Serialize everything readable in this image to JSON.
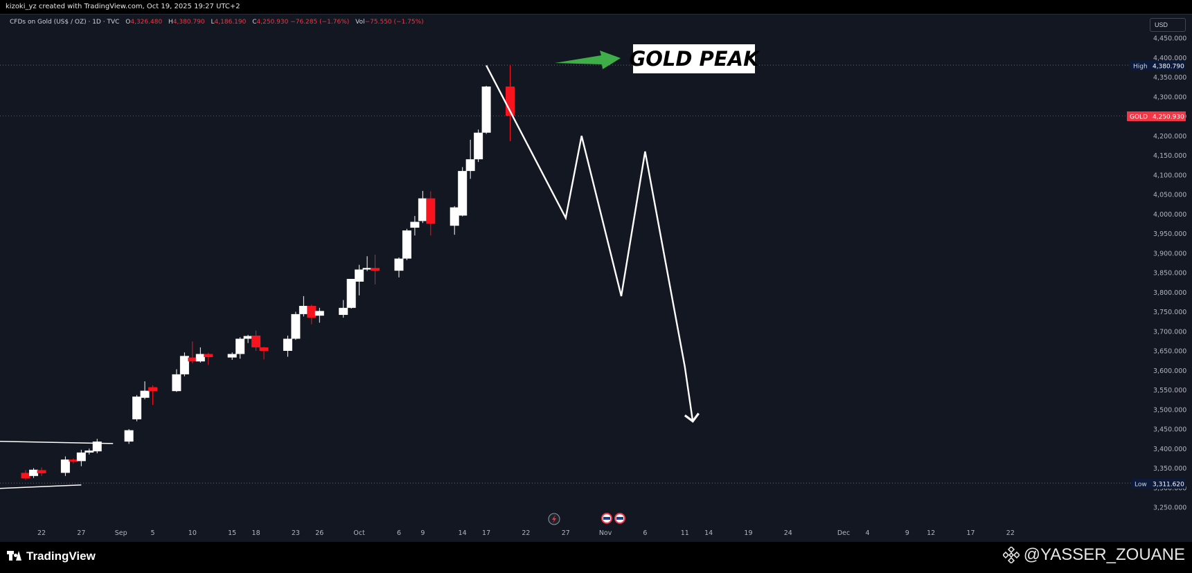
{
  "header": {
    "caption": "kizoki_yz created with TradingView.com, Oct 19, 2025 19:27 UTC+2"
  },
  "legend": {
    "symbol": "CFDs on Gold (US$ / OZ) · 1D · TVC",
    "o_label": "O",
    "o_value": "4,326.480",
    "h_label": "H",
    "h_value": "4,380.790",
    "l_label": "L",
    "l_value": "4,186.190",
    "c_label": "C",
    "c_value": "4,250.930",
    "change": "−76.285 (−1.76%)",
    "vol_label": "Vol",
    "vol_value": "−75.550 (−1.75%)"
  },
  "currency_button": "USD",
  "annotation": {
    "text": "GOLD PEAK",
    "arrow_color": "#3fae49"
  },
  "price_tags": {
    "high_label": "High",
    "high_value": "4,380.790",
    "last_label": "GOLD",
    "last_value": "4,250.930",
    "low_label": "Low",
    "low_value": "3,311.620"
  },
  "footer": {
    "brand": "TradingView",
    "author": "@YASSER_ZOUANE"
  },
  "icons": [
    "tradingview-logo-icon",
    "binance-icon",
    "flash-event-icon",
    "us-flag-event-icon"
  ],
  "colors": {
    "background": "#131722",
    "up": "#ffffff",
    "down": "#f7141e",
    "text": "#b2b5be",
    "high_tag": "#0b1a3a",
    "last_tag": "#f23645"
  },
  "chart_data": {
    "type": "candlestick",
    "title": "CFDs on Gold (US$ / OZ) · 1D · TVC",
    "ylim": [
      3200,
      4460
    ],
    "y_ticks": [
      "3,250.000",
      "3,300.000",
      "3,350.000",
      "3,400.000",
      "3,450.000",
      "3,500.000",
      "3,550.000",
      "3,600.000",
      "3,650.000",
      "3,700.000",
      "3,750.000",
      "3,800.000",
      "3,850.000",
      "3,900.000",
      "3,950.000",
      "4,000.000",
      "4,050.000",
      "4,100.000",
      "4,150.000",
      "4,200.000",
      "4,250.000",
      "4,300.000",
      "4,350.000",
      "4,400.000",
      "4,450.000"
    ],
    "x_ticks": [
      "22",
      "27",
      "Sep",
      "5",
      "10",
      "15",
      "18",
      "23",
      "26",
      "Oct",
      "6",
      "9",
      "14",
      "17",
      "22",
      "27",
      "Nov",
      "6",
      "11",
      "14",
      "19",
      "24",
      "Dec",
      "4",
      "9",
      "12",
      "17",
      "22"
    ],
    "high": 4380.79,
    "low": 3311.62,
    "last": 4250.93,
    "candles": [
      {
        "o": 3338,
        "h": 3345,
        "l": 3320,
        "c": 3324
      },
      {
        "o": 3330,
        "h": 3350,
        "l": 3325,
        "c": 3346
      },
      {
        "o": 3345,
        "h": 3352,
        "l": 3330,
        "c": 3337
      },
      {
        "o": 3338,
        "h": 3380,
        "l": 3330,
        "c": 3372
      },
      {
        "o": 3372,
        "h": 3375,
        "l": 3362,
        "c": 3367
      },
      {
        "o": 3368,
        "h": 3397,
        "l": 3355,
        "c": 3390
      },
      {
        "o": 3390,
        "h": 3400,
        "l": 3385,
        "c": 3395
      },
      {
        "o": 3393,
        "h": 3425,
        "l": 3388,
        "c": 3418
      },
      {
        "o": 3418,
        "h": 3450,
        "l": 3412,
        "c": 3447
      },
      {
        "o": 3475,
        "h": 3537,
        "l": 3470,
        "c": 3533
      },
      {
        "o": 3530,
        "h": 3572,
        "l": 3526,
        "c": 3548
      },
      {
        "o": 3557,
        "h": 3562,
        "l": 3512,
        "c": 3547
      },
      {
        "o": 3547,
        "h": 3603,
        "l": 3545,
        "c": 3590
      },
      {
        "o": 3590,
        "h": 3646,
        "l": 3585,
        "c": 3637
      },
      {
        "o": 3633,
        "h": 3674,
        "l": 3618,
        "c": 3623
      },
      {
        "o": 3623,
        "h": 3659,
        "l": 3620,
        "c": 3642
      },
      {
        "o": 3642,
        "h": 3645,
        "l": 3614,
        "c": 3634
      },
      {
        "o": 3633,
        "h": 3646,
        "l": 3627,
        "c": 3642
      },
      {
        "o": 3642,
        "h": 3685,
        "l": 3630,
        "c": 3681
      },
      {
        "o": 3681,
        "h": 3691,
        "l": 3670,
        "c": 3688
      },
      {
        "o": 3689,
        "h": 3702,
        "l": 3650,
        "c": 3659
      },
      {
        "o": 3659,
        "h": 3660,
        "l": 3628,
        "c": 3650
      },
      {
        "o": 3650,
        "h": 3689,
        "l": 3635,
        "c": 3681
      },
      {
        "o": 3681,
        "h": 3750,
        "l": 3678,
        "c": 3744
      },
      {
        "o": 3744,
        "h": 3790,
        "l": 3738,
        "c": 3765
      },
      {
        "o": 3765,
        "h": 3768,
        "l": 3718,
        "c": 3735
      },
      {
        "o": 3740,
        "h": 3760,
        "l": 3722,
        "c": 3752
      },
      {
        "o": 3742,
        "h": 3780,
        "l": 3735,
        "c": 3760
      },
      {
        "o": 3760,
        "h": 3834,
        "l": 3758,
        "c": 3834
      },
      {
        "o": 3827,
        "h": 3870,
        "l": 3792,
        "c": 3858
      },
      {
        "o": 3858,
        "h": 3892,
        "l": 3854,
        "c": 3862
      },
      {
        "o": 3862,
        "h": 3896,
        "l": 3820,
        "c": 3855
      },
      {
        "o": 3855,
        "h": 3889,
        "l": 3838,
        "c": 3886
      },
      {
        "o": 3886,
        "h": 3962,
        "l": 3882,
        "c": 3958
      },
      {
        "o": 3965,
        "h": 3995,
        "l": 3945,
        "c": 3980
      },
      {
        "o": 3982,
        "h": 4059,
        "l": 3977,
        "c": 4040
      },
      {
        "o": 4040,
        "h": 4058,
        "l": 3945,
        "c": 3975
      },
      {
        "o": 3970,
        "h": 4020,
        "l": 3947,
        "c": 4017
      },
      {
        "o": 3996,
        "h": 4120,
        "l": 3994,
        "c": 4110
      },
      {
        "o": 4110,
        "h": 4190,
        "l": 4090,
        "c": 4140
      },
      {
        "o": 4140,
        "h": 4216,
        "l": 4133,
        "c": 4208
      },
      {
        "o": 4208,
        "h": 4328,
        "l": 4205,
        "c": 4326
      },
      {
        "o": 4326,
        "h": 4380.79,
        "l": 4186.19,
        "c": 4250.93
      }
    ],
    "trendlines": [
      {
        "x": [
          "Aug 13",
          "Aug 31"
        ],
        "y": [
          3420,
          3413
        ]
      },
      {
        "x": [
          "Aug 13",
          "Aug 27"
        ],
        "y": [
          3295,
          3307
        ]
      }
    ],
    "projection": {
      "x": [
        "Oct 17",
        "Oct 27",
        "Oct 29",
        "Nov 3",
        "Nov 6",
        "Nov 11",
        "Nov 12"
      ],
      "y": [
        4380,
        3990,
        4200,
        3790,
        4160,
        3610,
        3470
      ]
    }
  }
}
